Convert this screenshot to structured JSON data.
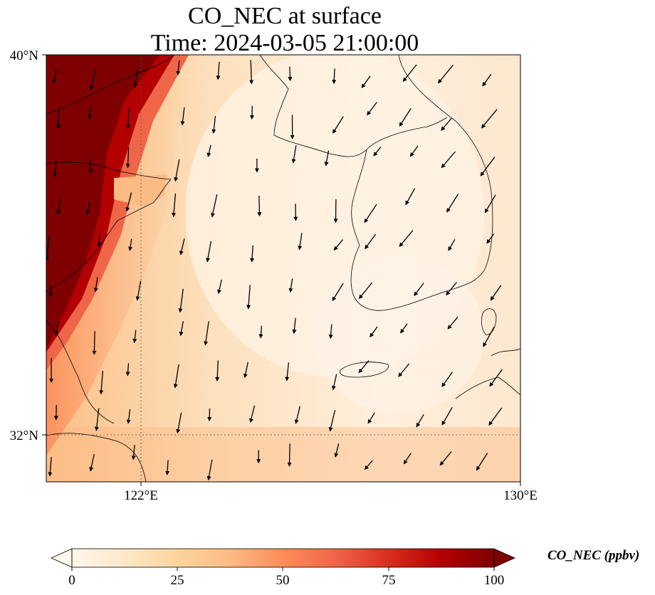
{
  "title": {
    "line1": "CO_NEC at surface",
    "line2": "Time: 2024-03-05 21:00:00"
  },
  "axes": {
    "lat_ticks": [
      {
        "value": 40,
        "label": "40°N"
      },
      {
        "value": 32,
        "label": "32°N"
      }
    ],
    "lon_ticks": [
      {
        "value": 122,
        "label": "122°E"
      },
      {
        "value": 130,
        "label": "130°E"
      }
    ],
    "lon_range": [
      120,
      130
    ],
    "lat_range": [
      31,
      40
    ],
    "gridlines": "dotted"
  },
  "colorbar": {
    "label": "CO_NEC (ppbv)",
    "ticks": [
      "0",
      "25",
      "50",
      "75",
      "100"
    ],
    "range": [
      0,
      100
    ],
    "extend": "both",
    "colormap": [
      "#fff7ec",
      "#fee8c8",
      "#fdd49e",
      "#fdbb84",
      "#fc8d59",
      "#ef6548",
      "#d7301f",
      "#b30000",
      "#7f0000"
    ]
  },
  "chart_data": {
    "type": "heatmap",
    "variable": "CO_NEC",
    "units": "ppbv",
    "level": "surface",
    "time": "2024-03-05 21:00:00",
    "overlay": "wind vectors (predominantly from the north / north-northeast)"
  }
}
